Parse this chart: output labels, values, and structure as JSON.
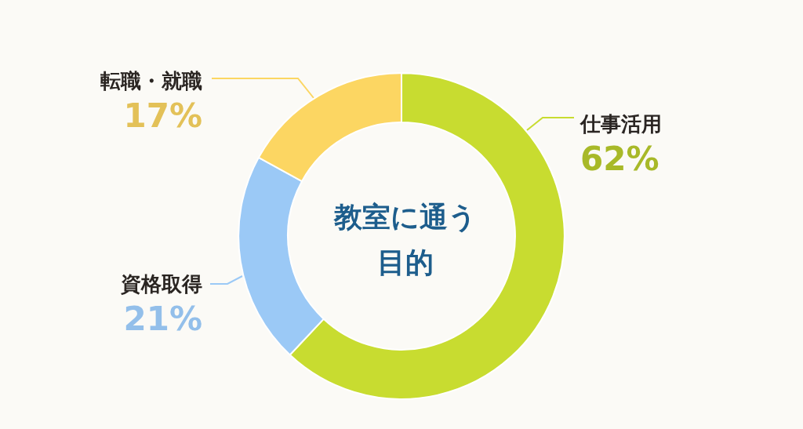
{
  "chart_data": {
    "type": "donut",
    "title": "教室に通う目的",
    "categories": [
      "仕事活用",
      "資格取得",
      "転職・就職"
    ],
    "values": [
      62,
      21,
      17
    ],
    "colors": [
      "#c8dc30",
      "#9bc9f6",
      "#fcd662"
    ],
    "value_labels": [
      "62%",
      "21%",
      "17%"
    ]
  }
}
